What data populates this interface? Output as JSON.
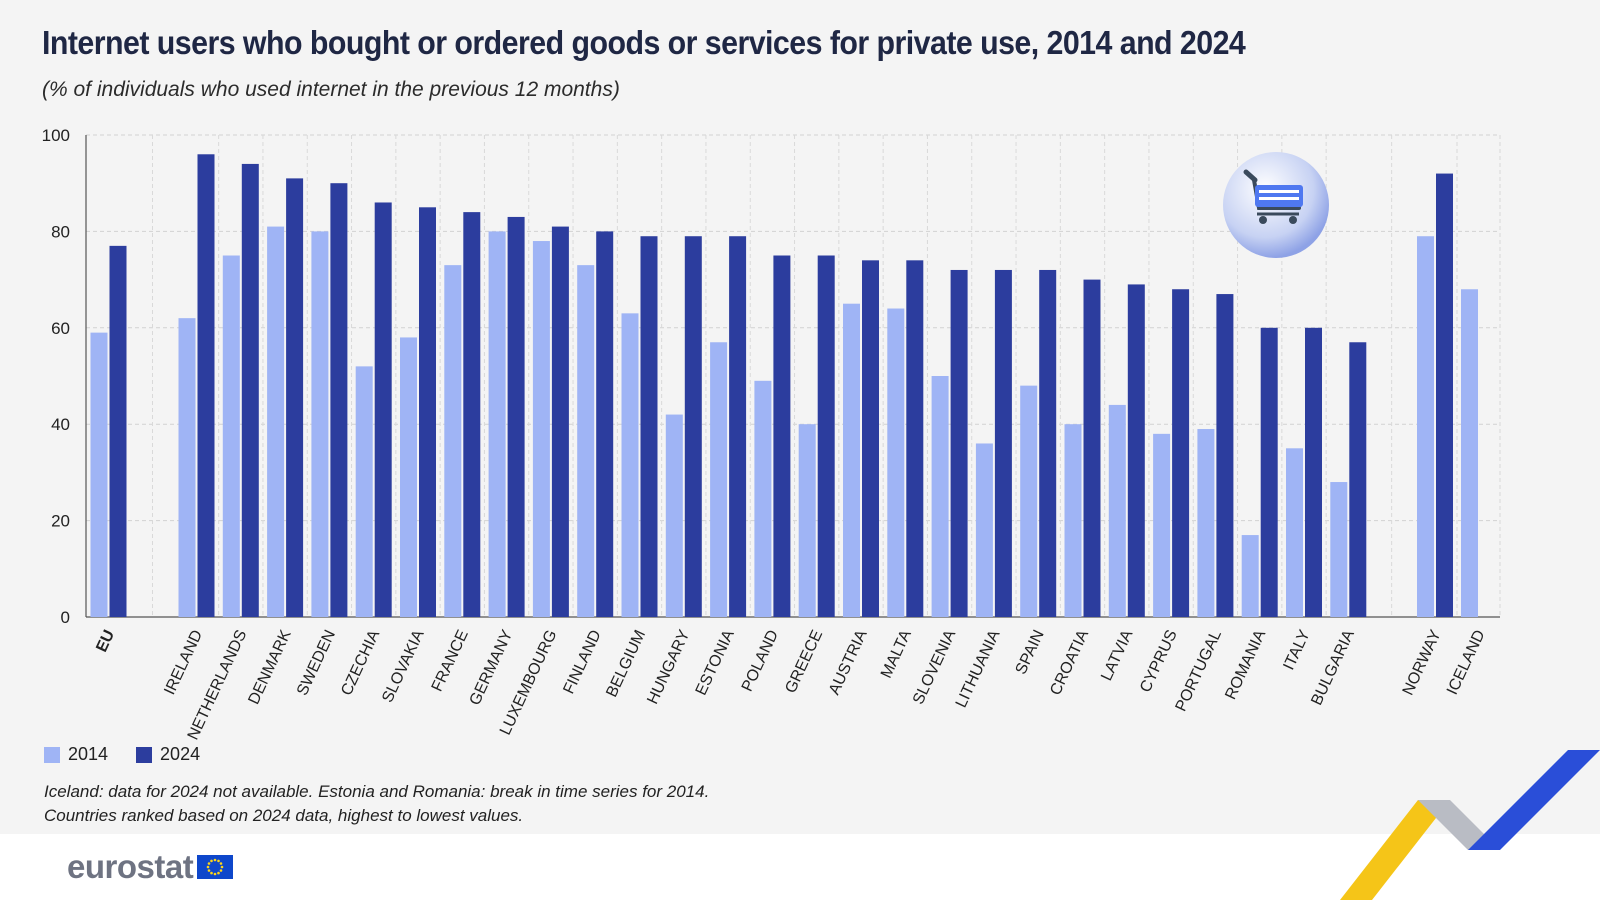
{
  "header": {
    "title": "Internet users who bought or ordered goods or services for private use, 2014 and 2024",
    "subtitle": "(% of individuals who used internet in the previous 12 months)"
  },
  "legend": {
    "label_2014": "2014",
    "label_2024": "2024"
  },
  "notes": {
    "line1": "Iceland: data for 2024 not available. Estonia and Romania: break in time series for 2014.",
    "line2": "Countries ranked based on 2024 data, highest to lowest values."
  },
  "footer": {
    "brand": "eurostat"
  },
  "icons": {
    "cart": "shopping-cart-icon",
    "flag": "eu-flag-icon"
  },
  "colors": {
    "s2014": "#9fb4f5",
    "s2024": "#2c3d9e"
  },
  "chart_data": {
    "type": "bar",
    "categories": [
      "EU",
      "IRELAND",
      "NETHERLANDS",
      "DENMARK",
      "SWEDEN",
      "CZECHIA",
      "SLOVAKIA",
      "FRANCE",
      "GERMANY",
      "LUXEMBOURG",
      "FINLAND",
      "BELGIUM",
      "HUNGARY",
      "ESTONIA",
      "POLAND",
      "GREECE",
      "AUSTRIA",
      "MALTA",
      "SLOVENIA",
      "LITHUANIA",
      "SPAIN",
      "CROATIA",
      "LATVIA",
      "CYPRUS",
      "PORTUGAL",
      "ROMANIA",
      "ITALY",
      "BULGARIA",
      "NORWAY",
      "ICELAND"
    ],
    "series": [
      {
        "name": "2014",
        "values": [
          59,
          62,
          75,
          81,
          80,
          52,
          58,
          73,
          80,
          78,
          73,
          63,
          42,
          57,
          49,
          40,
          65,
          64,
          50,
          36,
          48,
          40,
          44,
          38,
          39,
          17,
          35,
          28,
          79,
          68
        ]
      },
      {
        "name": "2024",
        "values": [
          77,
          96,
          94,
          91,
          90,
          86,
          85,
          84,
          83,
          81,
          80,
          79,
          79,
          79,
          75,
          75,
          74,
          74,
          72,
          72,
          72,
          70,
          69,
          68,
          67,
          60,
          60,
          57,
          92,
          null
        ]
      }
    ],
    "ylim": [
      0,
      100
    ],
    "yticks": [
      0,
      20,
      40,
      60,
      80,
      100
    ],
    "grid": true,
    "legend": "bottom-left"
  }
}
